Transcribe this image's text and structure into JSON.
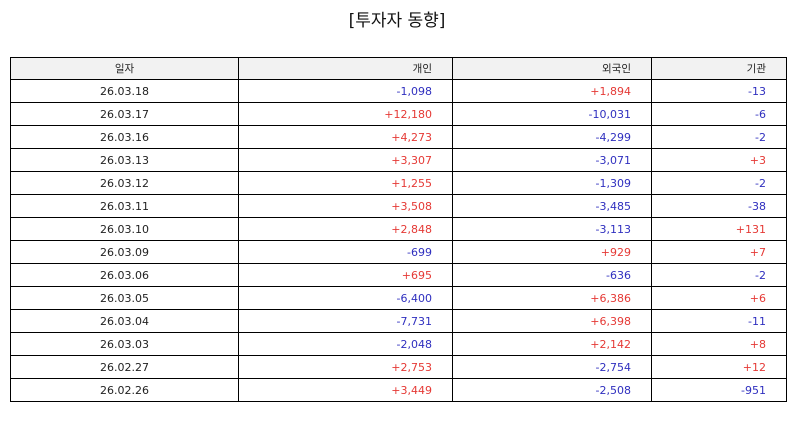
{
  "title": "[투자자 동향]",
  "colors": {
    "positive": "#e53935",
    "negative": "#2f2fbf"
  },
  "table": {
    "headers": [
      "일자",
      "개인",
      "외국인",
      "기관"
    ],
    "rows": [
      [
        "26.03.18",
        "-1,098",
        "+1,894",
        "-13"
      ],
      [
        "26.03.17",
        "+12,180",
        "-10,031",
        "-6"
      ],
      [
        "26.03.16",
        "+4,273",
        "-4,299",
        "-2"
      ],
      [
        "26.03.13",
        "+3,307",
        "-3,071",
        "+3"
      ],
      [
        "26.03.12",
        "+1,255",
        "-1,309",
        "-2"
      ],
      [
        "26.03.11",
        "+3,508",
        "-3,485",
        "-38"
      ],
      [
        "26.03.10",
        "+2,848",
        "-3,113",
        "+131"
      ],
      [
        "26.03.09",
        "-699",
        "+929",
        "+7"
      ],
      [
        "26.03.06",
        "+695",
        "-636",
        "-2"
      ],
      [
        "26.03.05",
        "-6,400",
        "+6,386",
        "+6"
      ],
      [
        "26.03.04",
        "-7,731",
        "+6,398",
        "-11"
      ],
      [
        "26.03.03",
        "-2,048",
        "+2,142",
        "+8"
      ],
      [
        "26.02.27",
        "+2,753",
        "-2,754",
        "+12"
      ],
      [
        "26.02.26",
        "+3,449",
        "-2,508",
        "-951"
      ]
    ]
  }
}
